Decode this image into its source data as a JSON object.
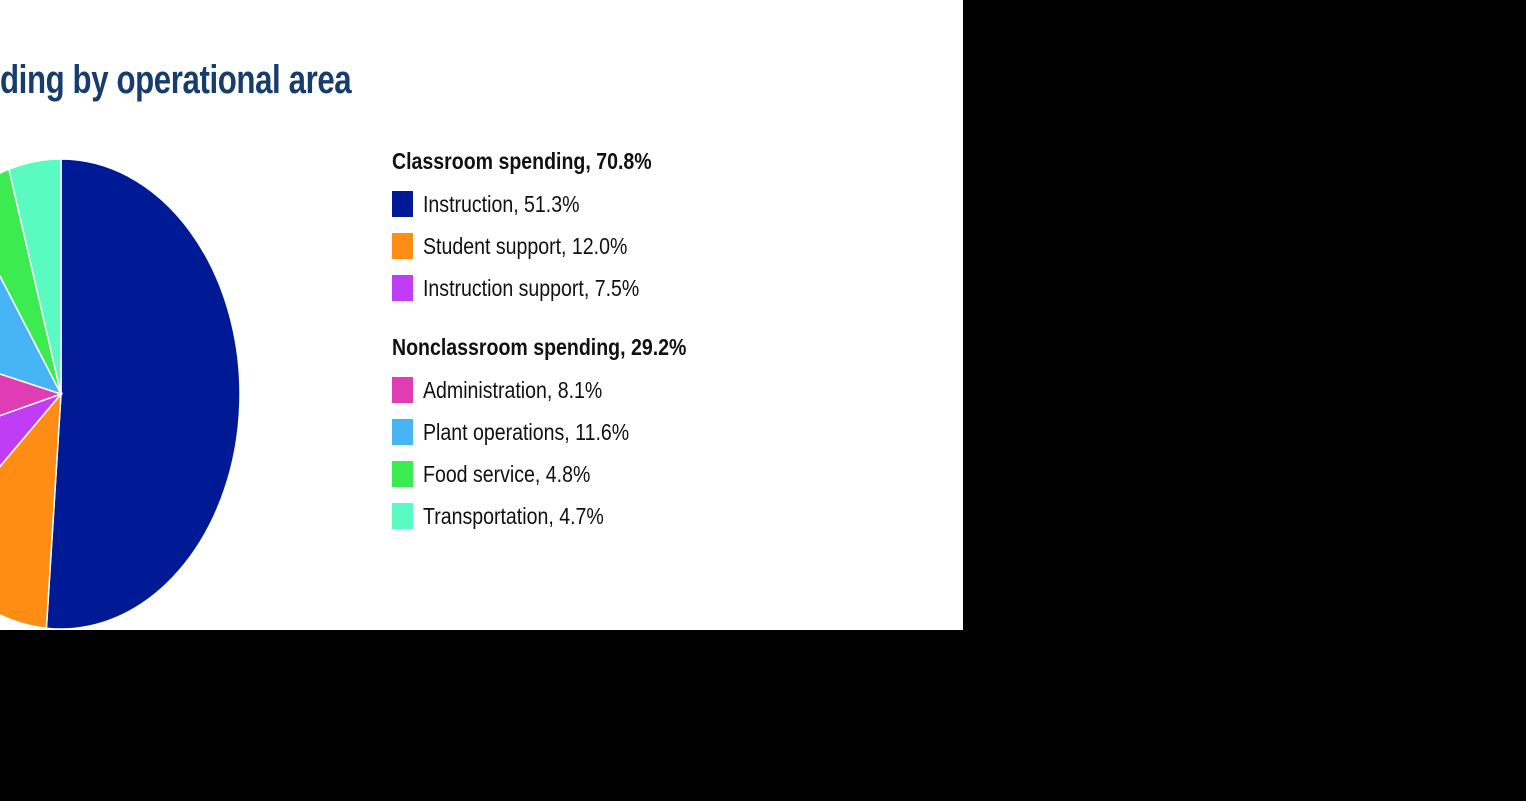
{
  "chart_data": {
    "type": "pie",
    "title": "ding by operational area",
    "groups": [
      {
        "label": "Classroom spending, 70.8%",
        "items": [
          0,
          1,
          2
        ]
      },
      {
        "label": "Nonclassroom spending, 29.2%",
        "items": [
          3,
          4,
          5,
          6
        ]
      }
    ],
    "slices": [
      {
        "label": "Instruction, 51.3%",
        "name": "Instruction",
        "value": 51.3,
        "color": "#001a96"
      },
      {
        "label": "Student support, 12.0%",
        "name": "Student support",
        "value": 12.0,
        "color": "#ff8c14"
      },
      {
        "label": "Instruction support, 7.5%",
        "name": "Instruction support",
        "value": 7.5,
        "color": "#c03cf5"
      },
      {
        "label": "Administration, 8.1%",
        "name": "Administration",
        "value": 8.1,
        "color": "#e03cb4"
      },
      {
        "label": "Plant operations, 11.6%",
        "name": "Plant operations",
        "value": 11.6,
        "color": "#46b4f5"
      },
      {
        "label": "Food service, 4.8%",
        "name": "Food service",
        "value": 4.8,
        "color": "#3ceb50"
      },
      {
        "label": "Transportation, 4.7%",
        "name": "Transportation",
        "value": 4.7,
        "color": "#5afac3"
      }
    ],
    "start": "top",
    "direction": "clockwise",
    "legend_position": "right"
  }
}
